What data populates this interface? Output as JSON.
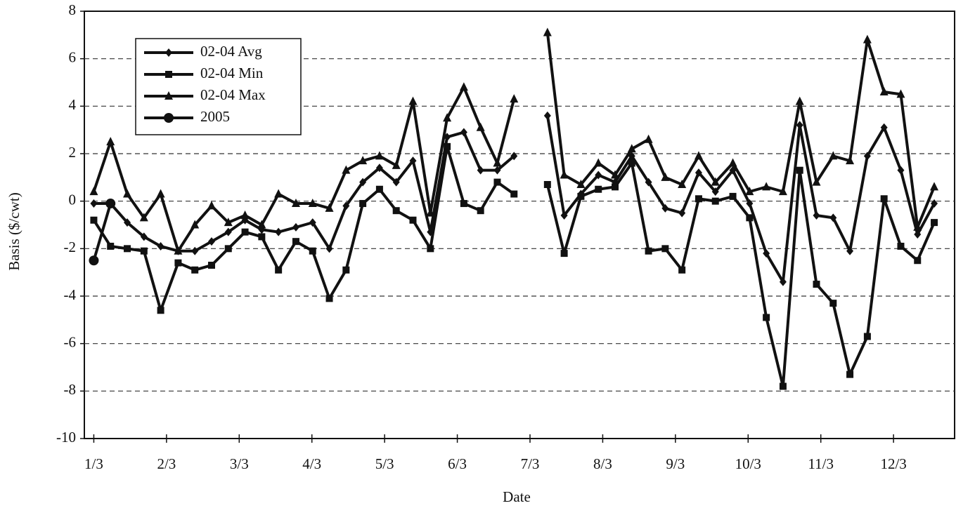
{
  "chart_data": {
    "type": "line",
    "x_label": "Date",
    "y_label": "Basis ($/cwt)",
    "xlim": [
      0.87,
      12.84
    ],
    "xticks": [
      {
        "value": 1,
        "label": "1/3"
      },
      {
        "value": 2,
        "label": "2/3"
      },
      {
        "value": 3,
        "label": "3/3"
      },
      {
        "value": 4,
        "label": "4/3"
      },
      {
        "value": 5,
        "label": "5/3"
      },
      {
        "value": 6,
        "label": "6/3"
      },
      {
        "value": 7,
        "label": "7/3"
      },
      {
        "value": 8,
        "label": "8/3"
      },
      {
        "value": 9,
        "label": "9/3"
      },
      {
        "value": 10,
        "label": "10/3"
      },
      {
        "value": 11,
        "label": "11/3"
      },
      {
        "value": 12,
        "label": "12/3"
      }
    ],
    "ylim": [
      -10,
      8
    ],
    "yticks": [
      -10,
      -8,
      -6,
      -4,
      -2,
      0,
      2,
      4,
      6,
      8
    ],
    "grid": true,
    "legend": "upper left",
    "x": [
      1.0,
      1.23,
      1.46,
      1.69,
      1.92,
      2.16,
      2.39,
      2.62,
      2.85,
      3.08,
      3.31,
      3.54,
      3.78,
      4.01,
      4.24,
      4.47,
      4.7,
      4.93,
      5.16,
      5.39,
      5.63,
      5.86,
      6.09,
      6.32,
      6.55,
      6.78,
      7.01,
      7.24,
      7.47,
      7.7,
      7.94,
      8.17,
      8.4,
      8.63,
      8.86,
      9.09,
      9.32,
      9.55,
      9.79,
      10.02,
      10.25,
      10.48,
      10.71,
      10.94,
      11.17,
      11.4,
      11.64,
      11.87,
      12.1,
      12.33,
      12.56
    ],
    "series": [
      {
        "name": "02-04 Avg",
        "color": "#111111",
        "marker": "diamond",
        "values": [
          -0.1,
          -0.1,
          -0.9,
          -1.5,
          -1.9,
          -2.1,
          -2.1,
          -1.7,
          -1.3,
          -0.8,
          -1.2,
          -1.3,
          -1.1,
          -0.9,
          -2.0,
          -0.2,
          0.8,
          1.4,
          0.8,
          1.7,
          -1.3,
          2.7,
          2.9,
          1.3,
          1.3,
          1.9,
          null,
          3.6,
          -0.6,
          0.3,
          1.1,
          0.8,
          1.9,
          0.8,
          -0.3,
          -0.5,
          1.2,
          0.4,
          1.3,
          -0.1,
          -2.2,
          -3.4,
          3.2,
          -0.6,
          -0.7,
          -2.1,
          1.9,
          3.1,
          1.3,
          -1.4,
          -0.1
        ]
      },
      {
        "name": "02-04 Min",
        "color": "#111111",
        "marker": "square",
        "values": [
          -0.8,
          -1.9,
          -2.0,
          -2.1,
          -4.6,
          -2.6,
          -2.9,
          -2.7,
          -2.0,
          -1.3,
          -1.5,
          -2.9,
          -1.7,
          -2.1,
          -4.1,
          -2.9,
          -0.1,
          0.5,
          -0.4,
          -0.8,
          -2.0,
          2.3,
          -0.1,
          -0.4,
          0.8,
          0.3,
          null,
          0.7,
          -2.2,
          0.2,
          0.5,
          0.6,
          1.6,
          -2.1,
          -2.0,
          -2.9,
          0.1,
          0.0,
          0.2,
          -0.7,
          -4.9,
          -7.8,
          1.3,
          -3.5,
          -4.3,
          -7.3,
          -5.7,
          0.1,
          -1.9,
          -2.5,
          -0.9
        ]
      },
      {
        "name": "02-04 Max",
        "color": "#111111",
        "marker": "triangle",
        "values": [
          0.4,
          2.5,
          0.3,
          -0.7,
          0.3,
          -2.1,
          -1.0,
          -0.2,
          -0.9,
          -0.6,
          -1.0,
          0.3,
          -0.1,
          -0.1,
          -0.3,
          1.3,
          1.7,
          1.9,
          1.5,
          4.2,
          -0.5,
          3.5,
          4.8,
          3.1,
          1.6,
          4.3,
          null,
          7.1,
          1.1,
          0.7,
          1.6,
          1.1,
          2.2,
          2.6,
          1.0,
          0.7,
          1.9,
          0.8,
          1.6,
          0.4,
          0.6,
          0.4,
          4.2,
          0.8,
          1.9,
          1.7,
          6.8,
          4.6,
          4.5,
          -1.1,
          0.6
        ]
      },
      {
        "name": "2005",
        "color": "#111111",
        "marker": "circle",
        "values": [
          -2.5,
          -0.1,
          null,
          null,
          null,
          null,
          null,
          null,
          null,
          null,
          null,
          null,
          null,
          null,
          null,
          null,
          null,
          null,
          null,
          null,
          null,
          null,
          null,
          null,
          null,
          null,
          null,
          null,
          null,
          null,
          null,
          null,
          null,
          null,
          null,
          null,
          null,
          null,
          null,
          null,
          null,
          null,
          null,
          null,
          null,
          null,
          null,
          null,
          null,
          null,
          null
        ]
      }
    ]
  }
}
